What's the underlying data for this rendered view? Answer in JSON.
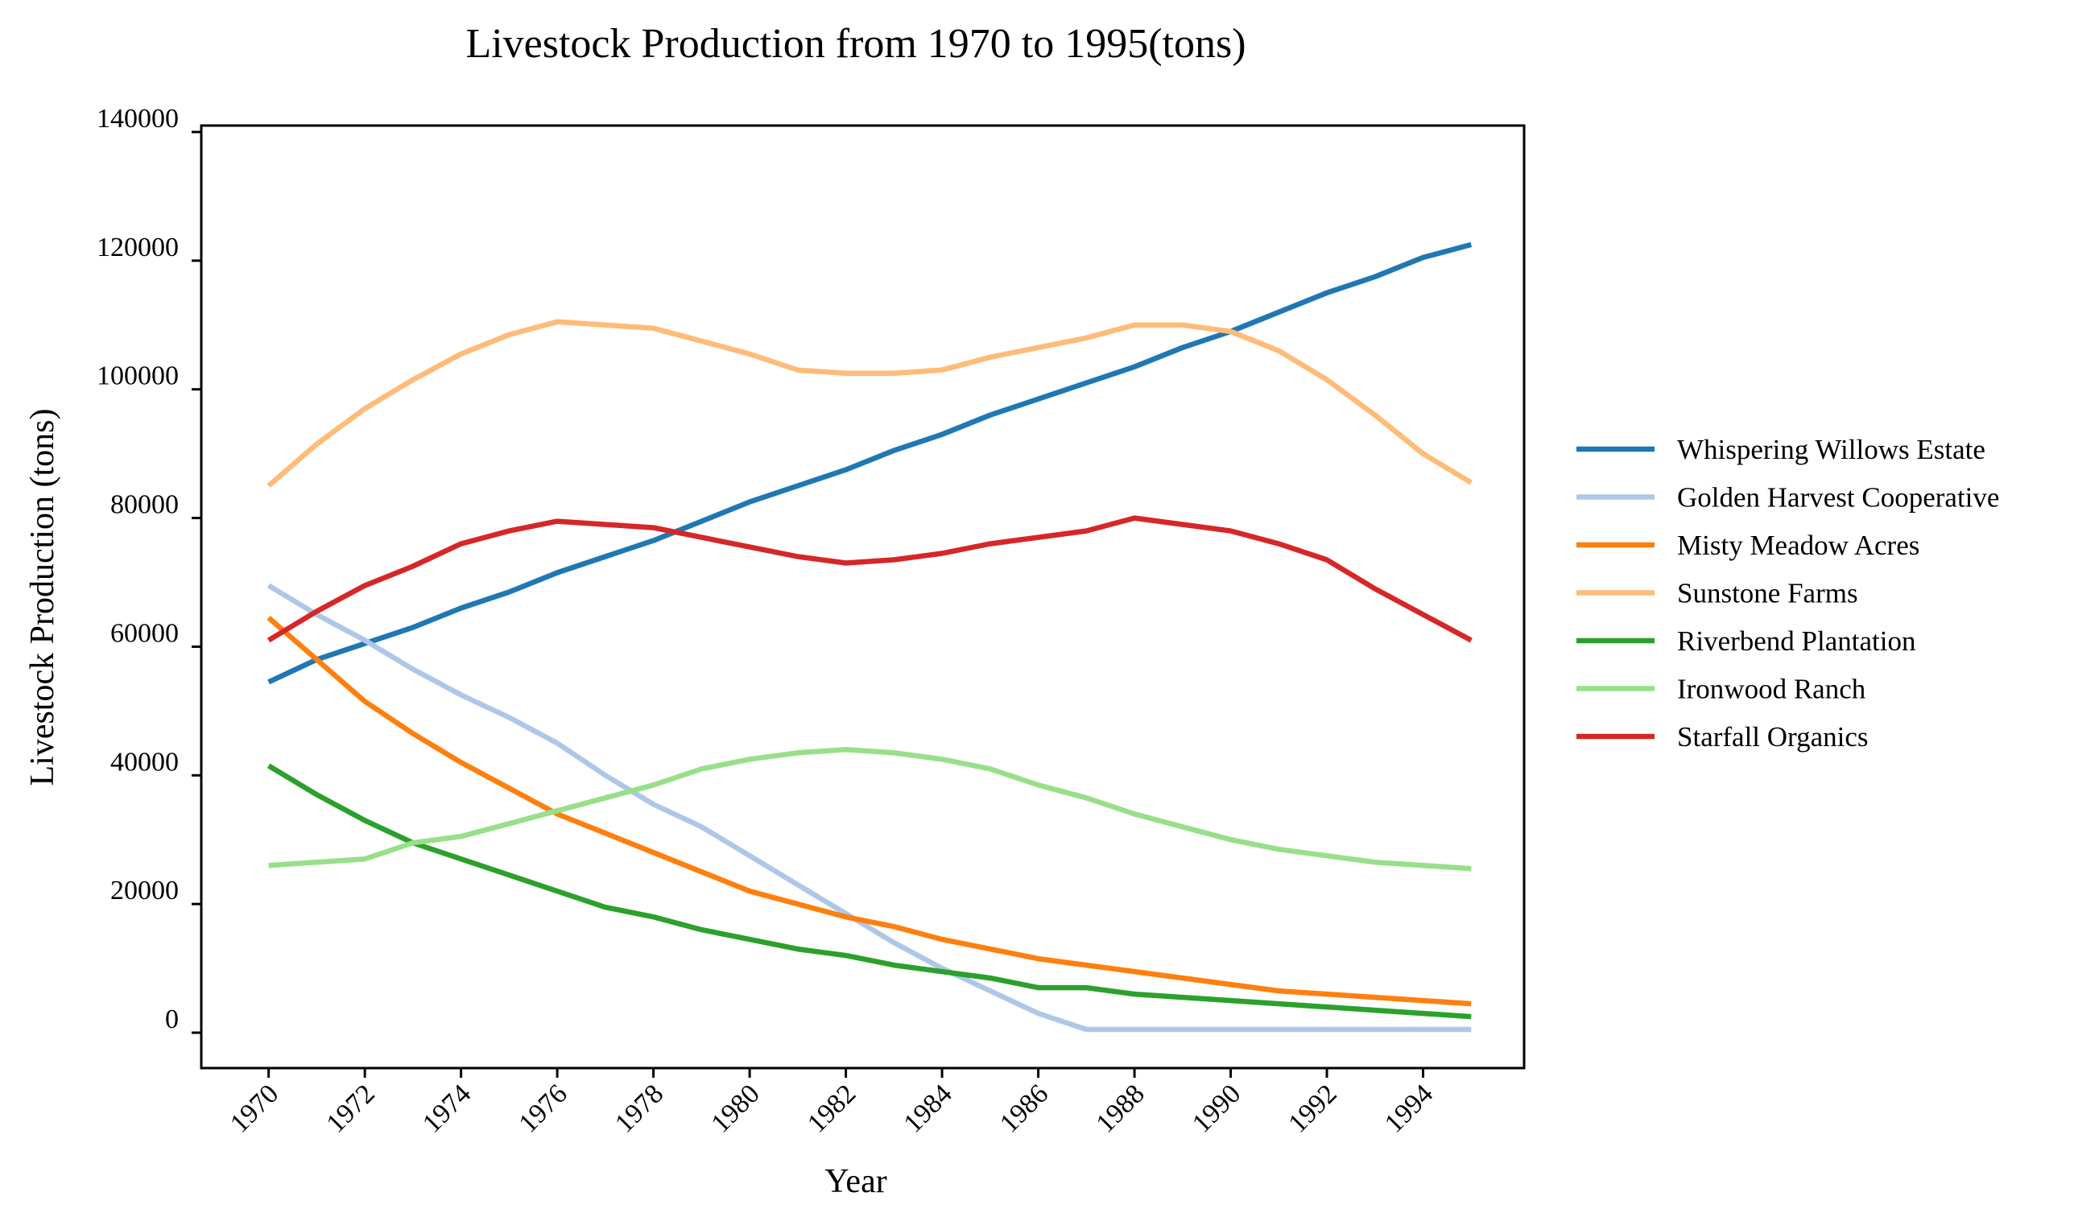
{
  "chart_data": {
    "type": "line",
    "title": "Livestock Production from 1970 to 1995(tons)",
    "xlabel": "Year",
    "ylabel": "Livestock Production (tons)",
    "xlim": [
      1968.6,
      1996.1
    ],
    "ylim": [
      -5500,
      141000
    ],
    "x_ticks": [
      1970,
      1972,
      1974,
      1976,
      1978,
      1980,
      1982,
      1984,
      1986,
      1988,
      1990,
      1992,
      1994
    ],
    "x_tick_labels": [
      "1970",
      "1972",
      "1974",
      "1976",
      "1978",
      "1980",
      "1982",
      "1984",
      "1986",
      "1988",
      "1990",
      "1992",
      "1994"
    ],
    "y_ticks": [
      0,
      20000,
      40000,
      60000,
      80000,
      100000,
      120000,
      140000
    ],
    "y_tick_labels": [
      "0",
      "20000",
      "40000",
      "60000",
      "80000",
      "100000",
      "120000",
      "140000"
    ],
    "grid": false,
    "legend_position": "right",
    "x": [
      1970,
      1971,
      1972,
      1973,
      1974,
      1975,
      1976,
      1977,
      1978,
      1979,
      1980,
      1981,
      1982,
      1983,
      1984,
      1985,
      1986,
      1987,
      1988,
      1989,
      1990,
      1991,
      1992,
      1993,
      1994,
      1995
    ],
    "series": [
      {
        "name": "Whispering Willows Estate",
        "color": "#1f77b4",
        "values": [
          54500,
          58000,
          60500,
          63000,
          66000,
          68500,
          71500,
          74000,
          76500,
          79500,
          82500,
          85000,
          87500,
          90500,
          93000,
          96000,
          98500,
          101000,
          103500,
          106500,
          109000,
          112000,
          115000,
          117500,
          120500,
          122500
        ]
      },
      {
        "name": "Golden Harvest Cooperative",
        "color": "#aec7e8",
        "values": [
          69500,
          65000,
          61000,
          56500,
          52500,
          49000,
          45000,
          40000,
          35500,
          32000,
          27500,
          23000,
          18500,
          14000,
          10000,
          6500,
          3000,
          500,
          500,
          500,
          500,
          500,
          500,
          500,
          500,
          500
        ]
      },
      {
        "name": "Misty Meadow Acres",
        "color": "#ff7f0e",
        "values": [
          64500,
          58000,
          51500,
          46500,
          42000,
          38000,
          34000,
          31000,
          28000,
          25000,
          22000,
          20000,
          18000,
          16500,
          14500,
          13000,
          11500,
          10500,
          9500,
          8500,
          7500,
          6500,
          6000,
          5500,
          5000,
          4500
        ]
      },
      {
        "name": "Sunstone Farms",
        "color": "#ffbb78",
        "values": [
          85000,
          91500,
          97000,
          101500,
          105500,
          108500,
          110500,
          110000,
          109500,
          107500,
          105500,
          103000,
          102500,
          102500,
          103000,
          105000,
          106500,
          108000,
          110000,
          110000,
          109000,
          106000,
          101500,
          96000,
          90000,
          85500
        ]
      },
      {
        "name": "Riverbend Plantation",
        "color": "#2ca02c",
        "values": [
          41500,
          37000,
          33000,
          29500,
          27000,
          24500,
          22000,
          19500,
          18000,
          16000,
          14500,
          13000,
          12000,
          10500,
          9500,
          8500,
          7000,
          7000,
          6000,
          5500,
          5000,
          4500,
          4000,
          3500,
          3000,
          2500
        ]
      },
      {
        "name": "Ironwood Ranch",
        "color": "#98df8a",
        "values": [
          26000,
          26500,
          27000,
          29500,
          30500,
          32500,
          34500,
          36500,
          38500,
          41000,
          42500,
          43500,
          44000,
          43500,
          42500,
          41000,
          38500,
          36500,
          34000,
          32000,
          30000,
          28500,
          27500,
          26500,
          26000,
          25500
        ]
      },
      {
        "name": "Starfall Organics",
        "color": "#d62728",
        "values": [
          61000,
          65500,
          69500,
          72500,
          76000,
          78000,
          79500,
          79000,
          78500,
          77000,
          75500,
          74000,
          73000,
          73500,
          74500,
          76000,
          77000,
          78000,
          80000,
          79000,
          78000,
          76000,
          73500,
          69000,
          65000,
          61000
        ]
      }
    ]
  }
}
